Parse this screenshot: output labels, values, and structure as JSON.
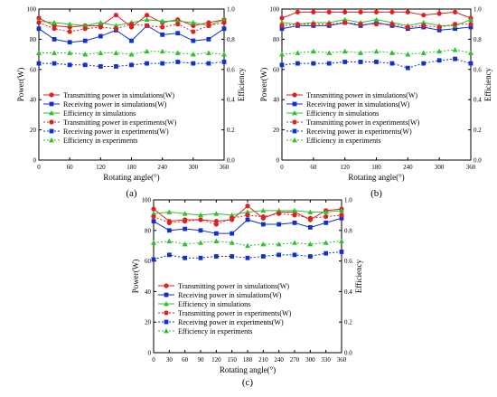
{
  "chart_data": [
    {
      "type": "line",
      "panel_label": "(a)",
      "xlabel": "Rotating angle(°)",
      "ylabel": "Power(W)",
      "y2label": "Efficiency",
      "x": [
        0,
        30,
        60,
        90,
        120,
        150,
        180,
        210,
        240,
        270,
        300,
        330,
        360
      ],
      "xticks": [
        0,
        60,
        120,
        180,
        240,
        300,
        360
      ],
      "xlim": [
        0,
        360
      ],
      "ylim": [
        0,
        100
      ],
      "yticks": [
        0,
        20,
        40,
        60,
        80,
        100
      ],
      "y2lim": [
        0,
        1.0
      ],
      "y2ticks": [
        "0.0",
        "0.2",
        "0.4",
        "0.6",
        "0.8",
        "1.0"
      ],
      "legend_position": "lower-left",
      "series": [
        {
          "name": "Transmitting power in simulations(W)",
          "axis": "left",
          "color": "#e02020",
          "marker": "circle",
          "style": "solid",
          "values": [
            94,
            89,
            88,
            89,
            89,
            96,
            88,
            96,
            91,
            93,
            89,
            91,
            93
          ]
        },
        {
          "name": "Receiving power in simulations(W)",
          "axis": "left",
          "color": "#1030d0",
          "marker": "square",
          "style": "solid",
          "values": [
            87,
            80,
            78,
            79,
            82,
            86,
            79,
            89,
            83,
            84,
            79,
            80,
            87
          ]
        },
        {
          "name": "Efficiency in simulations",
          "axis": "right",
          "color": "#30c030",
          "marker": "triangle",
          "style": "solid",
          "values": [
            0.92,
            0.91,
            0.9,
            0.89,
            0.91,
            0.89,
            0.91,
            0.93,
            0.92,
            0.92,
            0.91,
            0.89,
            0.93
          ]
        },
        {
          "name": "Transmitting power in experiments(W)",
          "axis": "left",
          "color": "#e02020",
          "marker": "circle",
          "style": "dashed",
          "values": [
            91,
            87,
            85,
            87,
            88,
            87,
            90,
            89,
            88,
            90,
            85,
            89,
            91
          ]
        },
        {
          "name": "Receiving power in experiments(W)",
          "axis": "left",
          "color": "#1030d0",
          "marker": "square",
          "style": "dashed",
          "values": [
            64,
            64,
            63,
            63,
            62,
            62,
            63,
            64,
            64,
            65,
            64,
            64,
            65
          ]
        },
        {
          "name": "Efficiency in experiments",
          "axis": "right",
          "color": "#30c030",
          "marker": "triangle",
          "style": "dashed",
          "values": [
            0.71,
            0.71,
            0.71,
            0.7,
            0.71,
            0.71,
            0.7,
            0.72,
            0.72,
            0.71,
            0.7,
            0.71,
            0.7
          ]
        }
      ]
    },
    {
      "type": "line",
      "panel_label": "(b)",
      "xlabel": "Rotating angle(°)",
      "ylabel": "Power(W)",
      "y2label": "Efficiency",
      "x": [
        0,
        30,
        60,
        90,
        120,
        150,
        180,
        210,
        240,
        270,
        300,
        330,
        360
      ],
      "xticks": [
        0,
        60,
        120,
        180,
        240,
        300,
        360
      ],
      "xlim": [
        0,
        360
      ],
      "ylim": [
        0,
        100
      ],
      "yticks": [
        0,
        20,
        40,
        60,
        80,
        100
      ],
      "y2lim": [
        0,
        1.0
      ],
      "y2ticks": [
        "0.0",
        "0.2",
        "0.4",
        "0.6",
        "0.8",
        "1.0"
      ],
      "legend_position": "lower-left",
      "series": [
        {
          "name": "Transmitting power in simulations(W)",
          "axis": "left",
          "color": "#e02020",
          "marker": "circle",
          "style": "solid",
          "values": [
            94,
            98,
            98,
            98,
            98,
            98,
            98,
            98,
            98,
            96,
            97,
            98,
            94
          ]
        },
        {
          "name": "Receiving power in simulations(W)",
          "axis": "left",
          "color": "#1030d0",
          "marker": "square",
          "style": "solid",
          "values": [
            87,
            89,
            89,
            89,
            91,
            89,
            91,
            89,
            87,
            88,
            86,
            87,
            88
          ]
        },
        {
          "name": "Efficiency in simulations",
          "axis": "right",
          "color": "#30c030",
          "marker": "triangle",
          "style": "solid",
          "values": [
            0.91,
            0.9,
            0.91,
            0.91,
            0.93,
            0.91,
            0.93,
            0.91,
            0.89,
            0.91,
            0.89,
            0.89,
            0.93
          ]
        },
        {
          "name": "Transmitting power in experiments(W)",
          "axis": "left",
          "color": "#e02020",
          "marker": "circle",
          "style": "dashed",
          "values": [
            89,
            90,
            90,
            90,
            91,
            90,
            90,
            90,
            88,
            89,
            88,
            90,
            90
          ]
        },
        {
          "name": "Receiving power in experiments(W)",
          "axis": "left",
          "color": "#1030d0",
          "marker": "square",
          "style": "dashed",
          "values": [
            63,
            64,
            64,
            64,
            65,
            65,
            65,
            64,
            61,
            64,
            66,
            67,
            64
          ]
        },
        {
          "name": "Efficiency in experiments",
          "axis": "right",
          "color": "#30c030",
          "marker": "triangle",
          "style": "dashed",
          "values": [
            0.7,
            0.71,
            0.72,
            0.71,
            0.72,
            0.71,
            0.72,
            0.71,
            0.7,
            0.71,
            0.72,
            0.73,
            0.71
          ]
        }
      ]
    },
    {
      "type": "line",
      "panel_label": "(c)",
      "xlabel": "Rotating angle(°)",
      "ylabel": "Power(W)",
      "y2label": "Efficiency",
      "x": [
        0,
        30,
        60,
        90,
        120,
        150,
        180,
        210,
        240,
        270,
        300,
        330,
        360
      ],
      "xticks": [
        0,
        30,
        60,
        90,
        120,
        150,
        180,
        210,
        240,
        270,
        300,
        330,
        360
      ],
      "xlim": [
        0,
        360
      ],
      "ylim": [
        0,
        100
      ],
      "yticks": [
        0,
        20,
        40,
        60,
        80,
        100
      ],
      "y2lim": [
        0,
        1.0
      ],
      "y2ticks": [
        "0.0",
        "0.2",
        "0.4",
        "0.6",
        "0.8",
        "1.0"
      ],
      "legend_position": "lower-left",
      "series": [
        {
          "name": "Transmitting power in simulations(W)",
          "axis": "left",
          "color": "#e02020",
          "marker": "circle",
          "style": "solid",
          "values": [
            94,
            86,
            87,
            87,
            86,
            87,
            96,
            88,
            92,
            92,
            87,
            93,
            94
          ]
        },
        {
          "name": "Receiving power in simulations(W)",
          "axis": "left",
          "color": "#1030d0",
          "marker": "square",
          "style": "solid",
          "values": [
            86,
            80,
            81,
            80,
            78,
            78,
            87,
            84,
            84,
            85,
            82,
            85,
            88
          ]
        },
        {
          "name": "Efficiency in simulations",
          "axis": "right",
          "color": "#30c030",
          "marker": "triangle",
          "style": "solid",
          "values": [
            0.91,
            0.92,
            0.91,
            0.9,
            0.91,
            0.9,
            0.92,
            0.93,
            0.93,
            0.93,
            0.92,
            0.92,
            0.93
          ]
        },
        {
          "name": "Transmitting power in experiments(W)",
          "axis": "left",
          "color": "#e02020",
          "marker": "circle",
          "style": "dashed",
          "values": [
            89,
            85,
            86,
            87,
            84,
            88,
            90,
            89,
            91,
            90,
            88,
            89,
            90
          ]
        },
        {
          "name": "Receiving power in experiments(W)",
          "axis": "left",
          "color": "#1030d0",
          "marker": "square",
          "style": "dashed",
          "values": [
            61,
            64,
            62,
            62,
            63,
            63,
            62,
            63,
            64,
            64,
            63,
            65,
            66
          ]
        },
        {
          "name": "Efficiency in experiments",
          "axis": "right",
          "color": "#30c030",
          "marker": "triangle",
          "style": "dashed",
          "values": [
            0.72,
            0.73,
            0.71,
            0.72,
            0.73,
            0.72,
            0.7,
            0.71,
            0.71,
            0.72,
            0.71,
            0.72,
            0.73
          ]
        }
      ]
    }
  ]
}
